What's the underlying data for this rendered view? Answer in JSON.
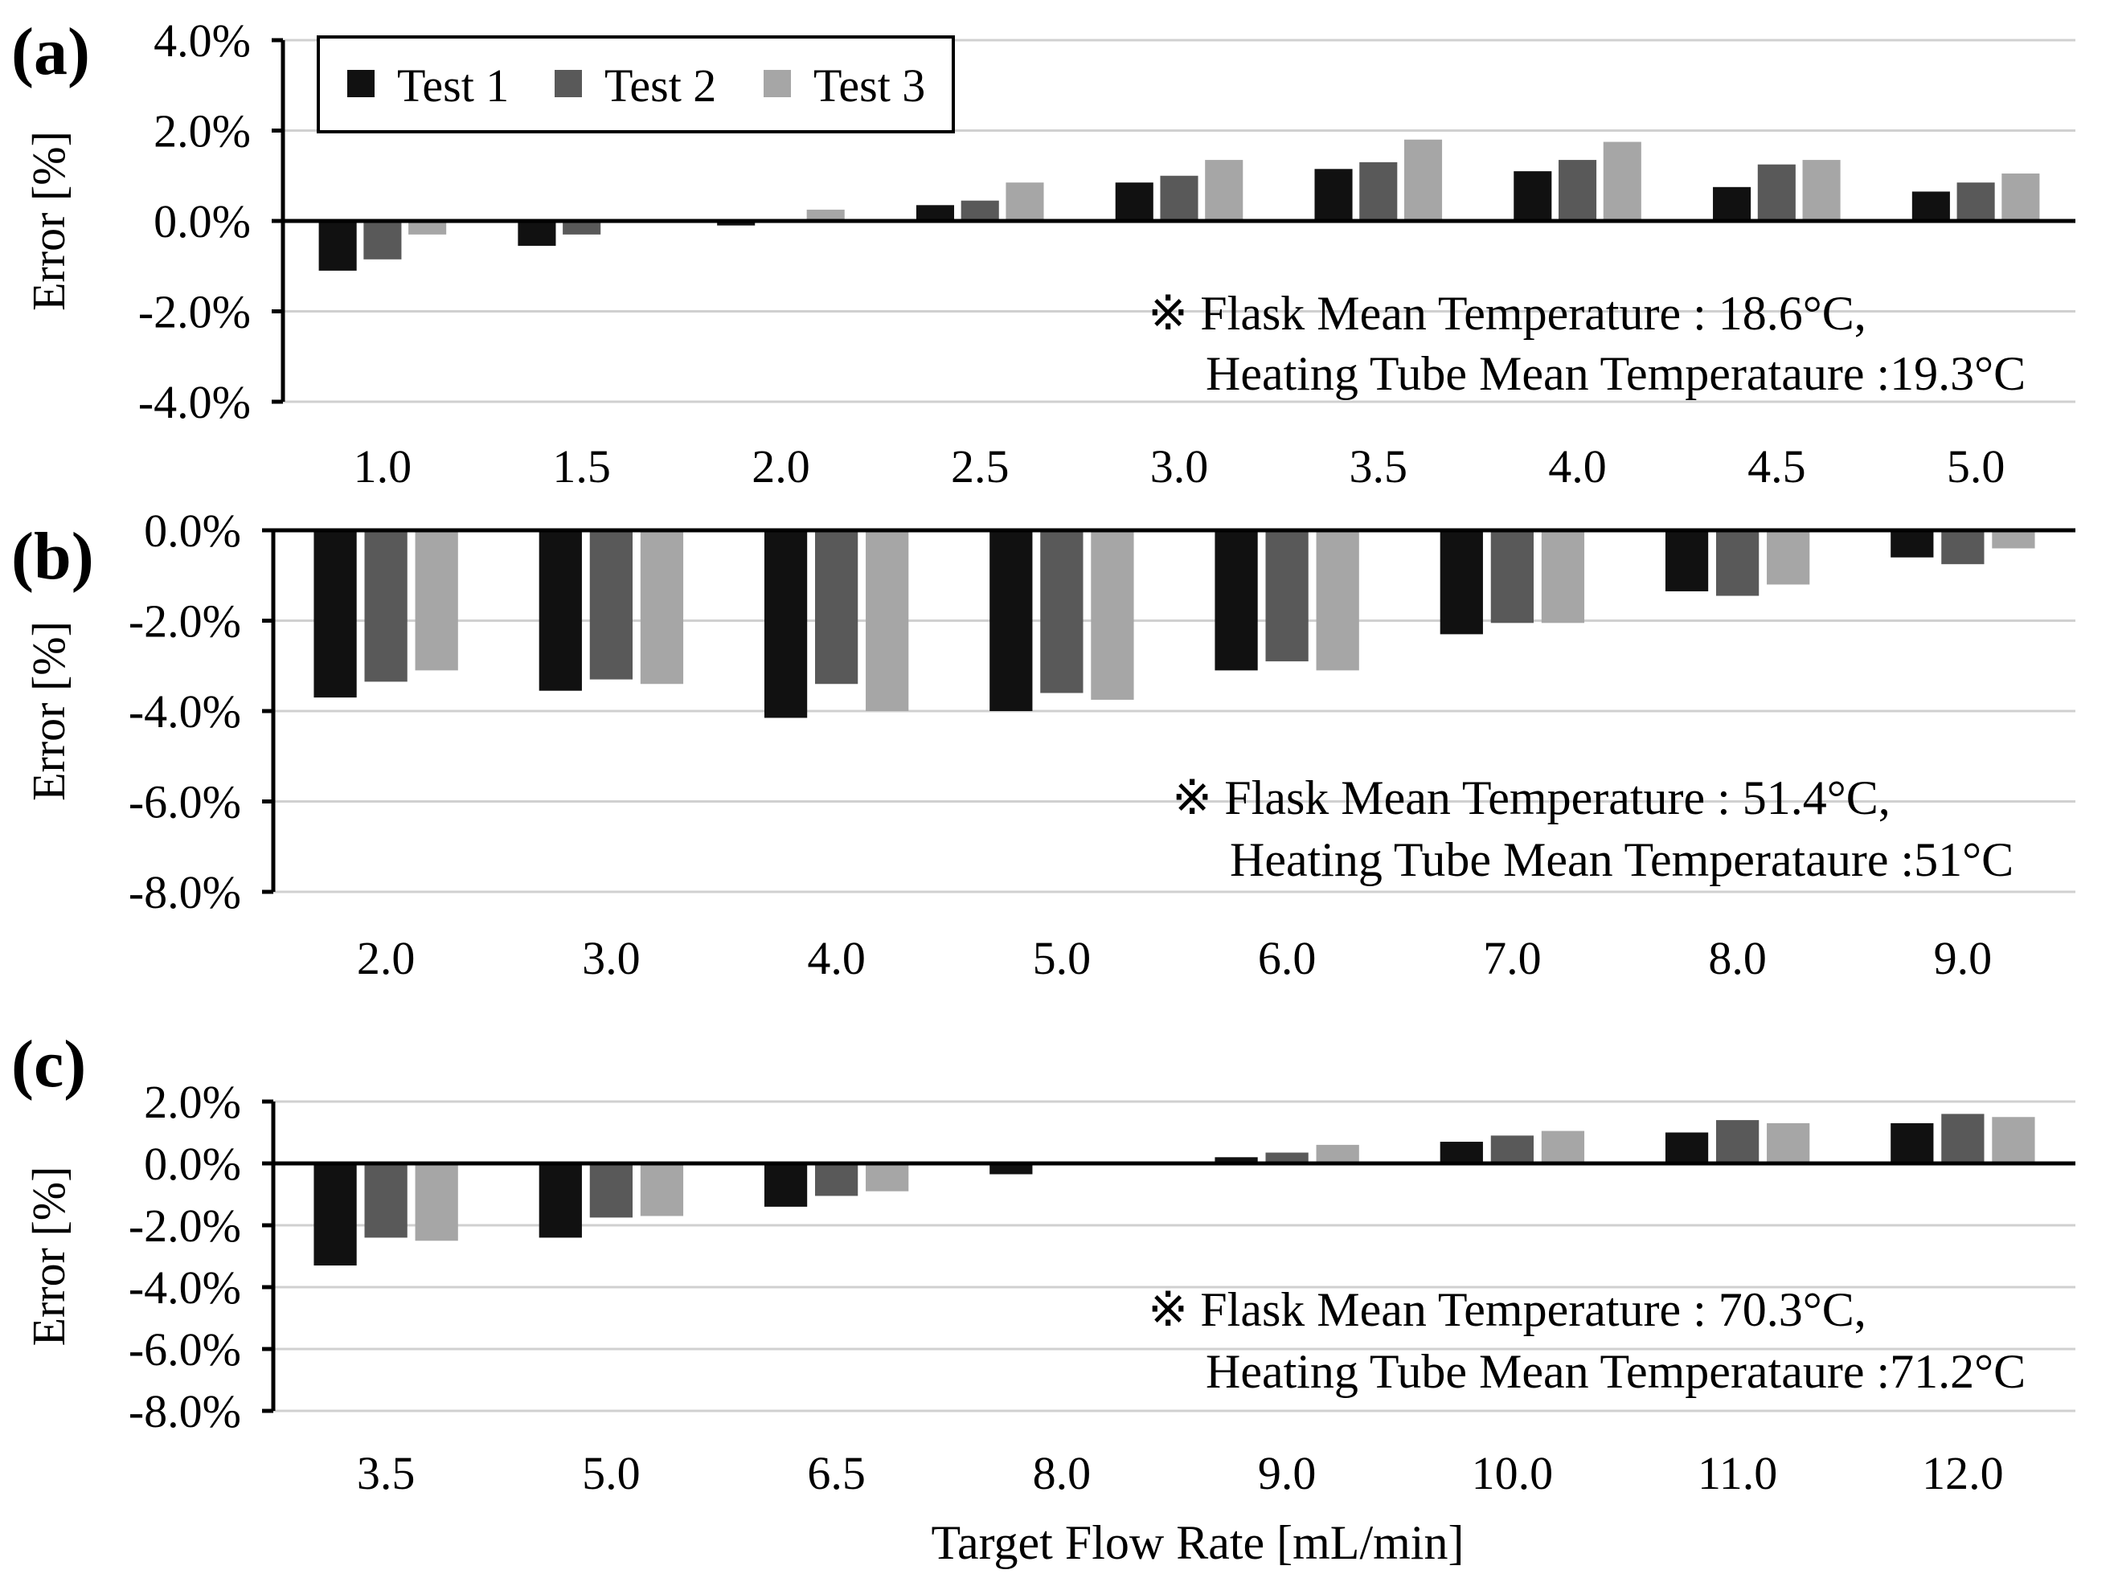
{
  "legend": {
    "entries": [
      {
        "name": "Test 1",
        "color": "#111111"
      },
      {
        "name": "Test 2",
        "color": "#595959"
      },
      {
        "name": "Test 3",
        "color": "#a6a6a6"
      }
    ]
  },
  "xlabel": "Target Flow Rate [mL/min]",
  "chart_data": [
    {
      "type": "bar",
      "panel": "(a)",
      "ylabel": "Error [%]",
      "ylim": [
        -4.0,
        4.0
      ],
      "yticks": [
        4.0,
        2.0,
        0.0,
        -2.0,
        -4.0
      ],
      "ytick_labels": [
        "4.0%",
        "2.0%",
        "0.0%",
        "-2.0%",
        "-4.0%"
      ],
      "categories": [
        "1.0",
        "1.5",
        "2.0",
        "2.5",
        "3.0",
        "3.5",
        "4.0",
        "4.5",
        "5.0"
      ],
      "series": [
        {
          "name": "Test 1",
          "values": [
            -1.1,
            -0.55,
            -0.1,
            0.35,
            0.85,
            1.15,
            1.1,
            0.75,
            0.65
          ]
        },
        {
          "name": "Test 2",
          "values": [
            -0.85,
            -0.3,
            0.0,
            0.45,
            1.0,
            1.3,
            1.35,
            1.25,
            0.85
          ]
        },
        {
          "name": "Test 3",
          "values": [
            -0.3,
            0.0,
            0.25,
            0.85,
            1.35,
            1.8,
            1.75,
            1.35,
            1.05
          ]
        }
      ],
      "annotation": {
        "line1": "※ Flask Mean Temperature : 18.6°C,",
        "line2": "Heating Tube Mean Temperataure :19.3°C"
      }
    },
    {
      "type": "bar",
      "panel": "(b)",
      "ylabel": "Error [%]",
      "ylim": [
        -8.0,
        0.0
      ],
      "yticks": [
        0.0,
        -2.0,
        -4.0,
        -6.0,
        -8.0
      ],
      "ytick_labels": [
        "0.0%",
        "-2.0%",
        "-4.0%",
        "-6.0%",
        "-8.0%"
      ],
      "categories": [
        "2.0",
        "3.0",
        "4.0",
        "5.0",
        "6.0",
        "7.0",
        "8.0",
        "9.0"
      ],
      "series": [
        {
          "name": "Test 1",
          "values": [
            -3.7,
            -3.55,
            -4.15,
            -4.0,
            -3.1,
            -2.3,
            -1.35,
            -0.6
          ]
        },
        {
          "name": "Test 2",
          "values": [
            -3.35,
            -3.3,
            -3.4,
            -3.6,
            -2.9,
            -2.05,
            -1.45,
            -0.75
          ]
        },
        {
          "name": "Test 3",
          "values": [
            -3.1,
            -3.4,
            -4.0,
            -3.75,
            -3.1,
            -2.05,
            -1.2,
            -0.4
          ]
        }
      ],
      "annotation": {
        "line1": "※ Flask Mean Temperature : 51.4°C,",
        "line2": "Heating Tube Mean Temperataure :51°C"
      }
    },
    {
      "type": "bar",
      "panel": "(c)",
      "ylabel": "Error [%]",
      "ylim": [
        -8.0,
        2.0
      ],
      "yticks": [
        2.0,
        0.0,
        -2.0,
        -4.0,
        -6.0,
        -8.0
      ],
      "ytick_labels": [
        "2.0%",
        "0.0%",
        "-2.0%",
        "-4.0%",
        "-6.0%",
        "-8.0%"
      ],
      "categories": [
        "3.5",
        "5.0",
        "6.5",
        "8.0",
        "9.0",
        "10.0",
        "11.0",
        "12.0"
      ],
      "series": [
        {
          "name": "Test 1",
          "values": [
            -3.3,
            -2.4,
            -1.4,
            -0.35,
            0.2,
            0.7,
            1.0,
            1.3
          ]
        },
        {
          "name": "Test 2",
          "values": [
            -2.4,
            -1.75,
            -1.05,
            0.0,
            0.35,
            0.9,
            1.4,
            1.6
          ]
        },
        {
          "name": "Test 3",
          "values": [
            -2.5,
            -1.7,
            -0.9,
            0.0,
            0.6,
            1.05,
            1.3,
            1.5
          ]
        }
      ],
      "annotation": {
        "line1": "※ Flask Mean Temperature : 70.3°C,",
        "line2": "Heating Tube Mean Temperataure :71.2°C"
      }
    }
  ]
}
